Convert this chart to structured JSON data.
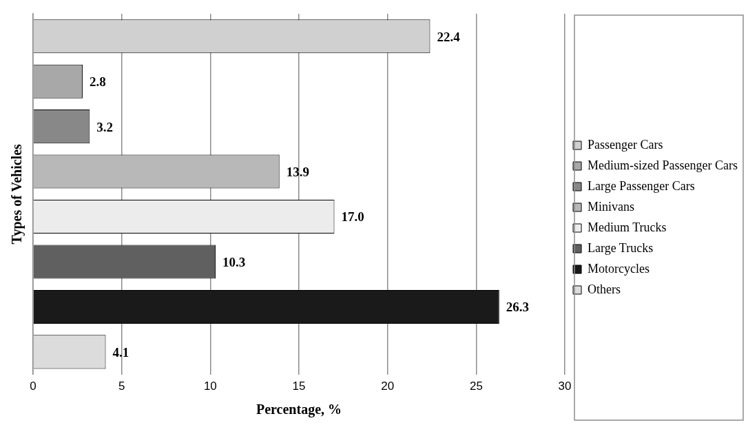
{
  "chart_data": {
    "type": "bar",
    "orientation": "horizontal",
    "xlabel": "Percentage, %",
    "ylabel": "Types of Vehicles",
    "categories": [
      null,
      null,
      null,
      null,
      null,
      null,
      null,
      null
    ],
    "series": [
      {
        "name": "Passenger Cars",
        "color": "#d0d0d0",
        "values": [
          22.4,
          null,
          null,
          null,
          null,
          null,
          null,
          null
        ],
        "value_labels": [
          "22.4",
          null,
          null,
          null,
          null,
          null,
          null,
          null
        ]
      },
      {
        "name": "Medium-sized Passenger Cars",
        "color": "#a8a8a8",
        "values": [
          null,
          2.8,
          null,
          null,
          null,
          null,
          null,
          null
        ],
        "value_labels": [
          null,
          "2.8",
          null,
          null,
          null,
          null,
          null,
          null
        ]
      },
      {
        "name": "Large Passenger Cars",
        "color": "#888888",
        "values": [
          null,
          null,
          3.2,
          null,
          null,
          null,
          null,
          null
        ],
        "value_labels": [
          null,
          null,
          "3.2",
          null,
          null,
          null,
          null,
          null
        ]
      },
      {
        "name": "Minivans",
        "color": "#b8b8b8",
        "values": [
          null,
          null,
          null,
          13.9,
          null,
          null,
          null,
          null
        ],
        "value_labels": [
          null,
          null,
          null,
          "13.9",
          null,
          null,
          null,
          null
        ]
      },
      {
        "name": "Medium Trucks",
        "color": "#ececec",
        "values": [
          null,
          null,
          null,
          null,
          17.0,
          null,
          null,
          null
        ],
        "value_labels": [
          null,
          null,
          null,
          null,
          "17.0",
          null,
          null,
          null
        ]
      },
      {
        "name": "Large Trucks",
        "color": "#606060",
        "values": [
          null,
          null,
          null,
          null,
          null,
          10.3,
          null,
          null
        ],
        "value_labels": [
          null,
          null,
          null,
          null,
          null,
          "10.3",
          null,
          null
        ]
      },
      {
        "name": "Motorcycles",
        "color": "#1a1a1a",
        "values": [
          null,
          null,
          null,
          null,
          null,
          null,
          26.3,
          null
        ],
        "value_labels": [
          null,
          null,
          null,
          null,
          null,
          null,
          "26.3",
          null
        ]
      },
      {
        "name": "Others",
        "color": "#dcdcdc",
        "values": [
          null,
          null,
          null,
          null,
          null,
          null,
          null,
          4.1
        ],
        "value_labels": [
          null,
          null,
          null,
          null,
          null,
          null,
          null,
          "4.1"
        ]
      }
    ],
    "xlim": [
      0,
      30
    ],
    "xticks": [
      0,
      5,
      10,
      15,
      20,
      25,
      30
    ],
    "grid": "x",
    "legend": "right"
  }
}
